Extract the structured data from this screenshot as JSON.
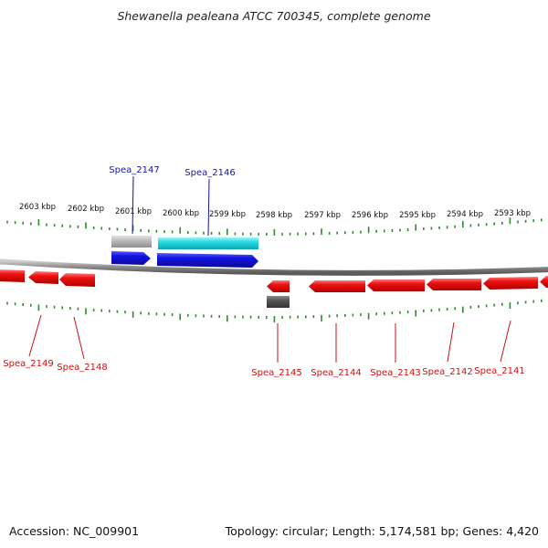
{
  "title": "Shewanella pealeana ATCC 700345, complete genome",
  "footer": {
    "accession": "Accession: NC_009901",
    "summary": "Topology: circular; Length: 5,174,581 bp; Genes: 4,420"
  },
  "colors": {
    "backbone": "#888888",
    "tick": "#2e8b2e",
    "forward_gene": "#1a1ae6",
    "forward_rna": "#22d8e0",
    "reverse_gene": "#ee1111",
    "gray_feature": "#b8b8b8",
    "dark_feature": "#555555",
    "forward_label": "#1515a0",
    "reverse_label": "#cc1111"
  },
  "ruler": {
    "labels": [
      "2603 kbp",
      "2602 kbp",
      "2601 kbp",
      "2600 kbp",
      "2599 kbp",
      "2598 kbp",
      "2597 kbp",
      "2596 kbp",
      "2595 kbp",
      "2594 kbp",
      "2593 kbp"
    ]
  },
  "genes": [
    {
      "name": "Spea_2147",
      "strand": "+"
    },
    {
      "name": "Spea_2146",
      "strand": "+"
    },
    {
      "name": "Spea_2149",
      "strand": "-"
    },
    {
      "name": "Spea_2148",
      "strand": "-"
    },
    {
      "name": "Spea_2145",
      "strand": "-"
    },
    {
      "name": "Spea_2144",
      "strand": "-"
    },
    {
      "name": "Spea_2143",
      "strand": "-"
    },
    {
      "name": "Spea_2142",
      "strand": "-"
    },
    {
      "name": "Spea_2141",
      "strand": "-"
    }
  ]
}
